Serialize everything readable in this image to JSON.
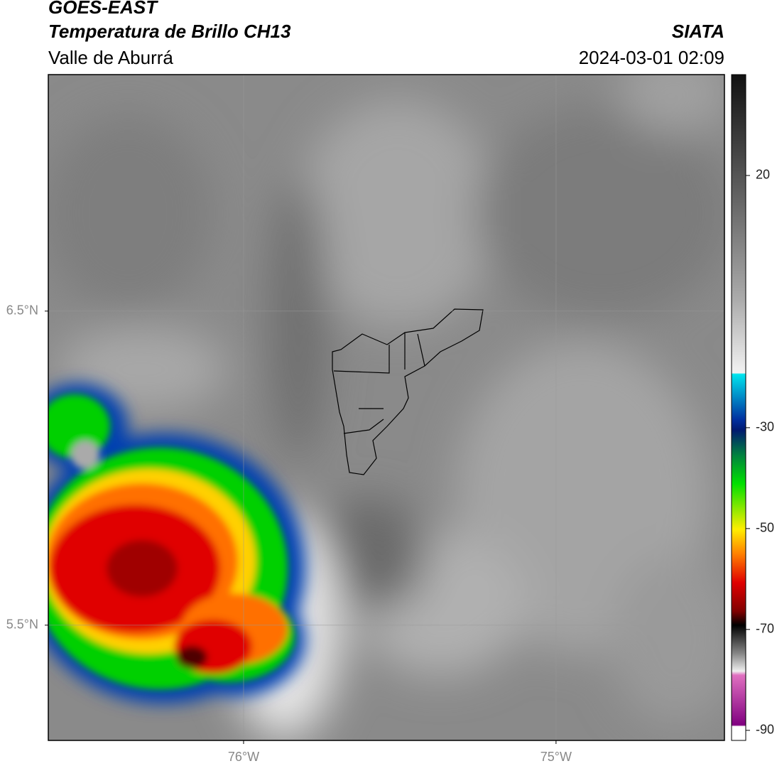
{
  "header": {
    "title": "GOES-EAST",
    "subtitle": "Temperatura de Brillo CH13",
    "region": "Valle de Aburrá",
    "source": "SIATA",
    "datetime": "2024-03-01 02:09"
  },
  "map": {
    "latlim": [
      5.133,
      7.253
    ],
    "lonlim": [
      -76.625,
      -74.461
    ],
    "latticks": [
      {
        "value": 6.5,
        "label": "6.5°N"
      },
      {
        "value": 5.5,
        "label": "5.5°N"
      }
    ],
    "lonticks": [
      {
        "value": -76,
        "label": "76°W"
      },
      {
        "value": -75,
        "label": "75°W"
      }
    ]
  },
  "colorbar": {
    "lim": [
      -92,
      40
    ],
    "ticks": [
      20,
      -30,
      -50,
      -70,
      -90
    ]
  }
}
